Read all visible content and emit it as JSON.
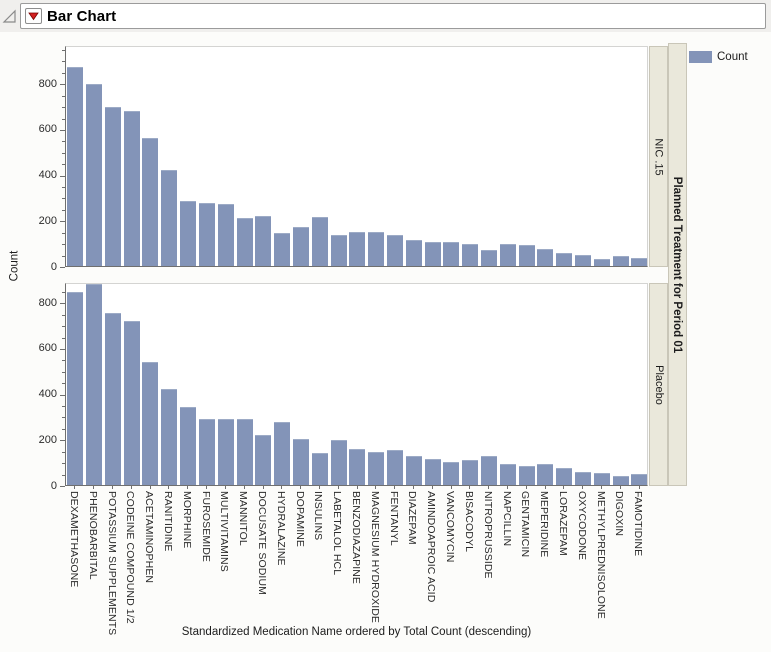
{
  "window": {
    "title": "Bar Chart"
  },
  "legend": {
    "label": "Count"
  },
  "colors": {
    "bar": "#8394b8",
    "bar_edge": "#9dabc6",
    "strip_bg": "#eae8db",
    "strip_border": "#c9c6b8",
    "header_bg": "#f0efed",
    "axis": "#6f6f6f",
    "red_triangle": "#d21f1f"
  },
  "chart_data": {
    "type": "bar",
    "title": "Bar Chart",
    "xlabel": "Standardized Medication Name ordered by Total Count (descending)",
    "ylabel": "Count",
    "ylim": [
      0,
      900
    ],
    "yticks": [
      0,
      200,
      400,
      600,
      800
    ],
    "minor_tick_step": 50,
    "grid": false,
    "legend_entries": [
      "Count"
    ],
    "legend_position": "top-right",
    "panel_variable": "Planned Treatment for Period 01",
    "panels": [
      "NIC .15",
      "Placebo"
    ],
    "categories": [
      "DEXAMETHASONE",
      "PHENOBARBITAL",
      "POTASSIUM SUPPLEMENTS",
      "CODEINE COMPOUND 1/2",
      "ACETAMINOPHEN",
      "RANITIDINE",
      "MORPHINE",
      "FUROSEMIDE",
      "MULTIVITAMINS",
      "MANNITOL",
      "DOCUSATE SODIUM",
      "HYDRALAZINE",
      "DOPAMINE",
      "INSULINS",
      "LABETALOL HCL",
      "BENZODIAZAPINE",
      "MAGNESIUM HYDROXIDE",
      "FENTANYL",
      "DIAZEPAM",
      "AMINDOAPROIC ACID",
      "VANCOMYCIN",
      "BISACODYL",
      "NITROPRUSSIDE",
      "NAPCILLIN",
      "GENTAMICIN",
      "MEPERIDINE",
      "LORAZEPAM",
      "OXYCODONE",
      "METHYLPREDNISOLONE",
      "DIGOXIN",
      "FAMOTIDINE"
    ],
    "series": [
      {
        "name": "NIC .15",
        "values": [
          870,
          795,
          695,
          680,
          560,
          420,
          285,
          275,
          270,
          210,
          220,
          145,
          170,
          215,
          135,
          148,
          150,
          135,
          115,
          105,
          105,
          95,
          70,
          95,
          90,
          75,
          55,
          50,
          32,
          45,
          35
        ]
      },
      {
        "name": "Placebo",
        "values": [
          845,
          885,
          755,
          720,
          540,
          420,
          340,
          290,
          288,
          290,
          220,
          275,
          200,
          140,
          195,
          158,
          145,
          155,
          128,
          115,
          102,
          110,
          125,
          92,
          85,
          92,
          74,
          56,
          52,
          38,
          48
        ]
      }
    ]
  }
}
